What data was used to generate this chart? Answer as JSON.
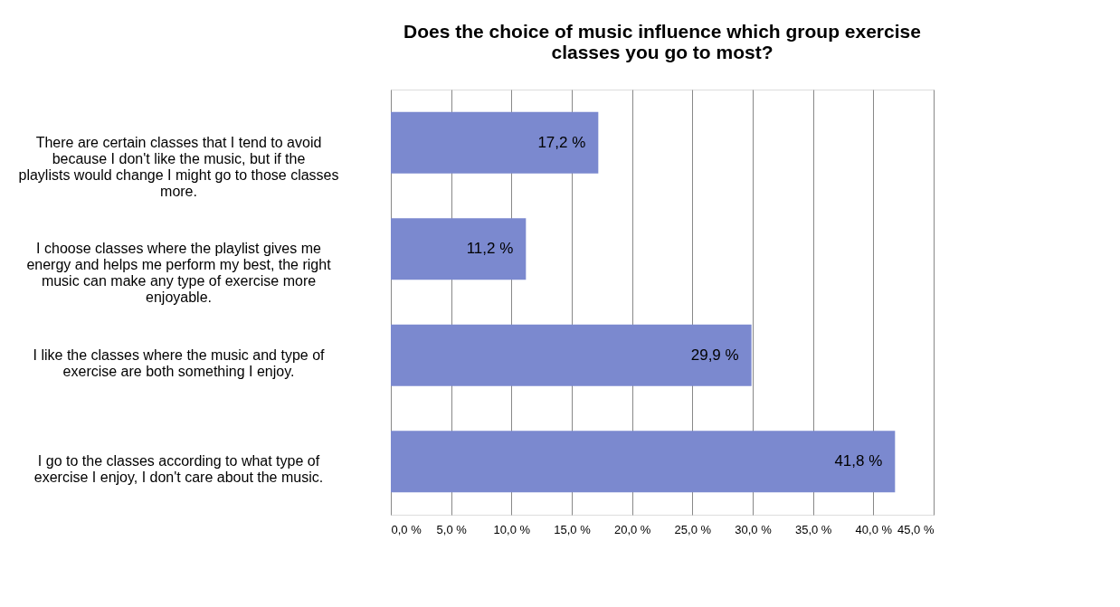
{
  "chart_data": {
    "type": "bar",
    "orientation": "horizontal",
    "title": "Does the choice of music influence which group exercise classes you go to most?",
    "categories": [
      "There are certain classes that I tend to avoid because I don't like the music, but if the playlists would change I might go to those classes more.",
      "I choose classes where the playlist gives me energy and helps me perform my best, the right music can make any type of exercise more enjoyable.",
      "I like the classes where the music and type of exercise are both something I enjoy.",
      "I go to the classes according to what type of exercise I enjoy, I don't care about the music."
    ],
    "values": [
      17.2,
      11.2,
      29.9,
      41.8
    ],
    "value_labels": [
      "17,2 %",
      "11,2 %",
      "29,9 %",
      "41,8 %"
    ],
    "color": "#7b89cf",
    "xlim": [
      0,
      45
    ],
    "xticks": [
      {
        "value": 0,
        "label": "0,0 %"
      },
      {
        "value": 5,
        "label": "5,0 %"
      },
      {
        "value": 10,
        "label": "10,0 %"
      },
      {
        "value": 15,
        "label": "15,0 %"
      },
      {
        "value": 20,
        "label": "20,0 %"
      },
      {
        "value": 25,
        "label": "25,0 %"
      },
      {
        "value": 30,
        "label": "30,0 %"
      },
      {
        "value": 35,
        "label": "35,0 %"
      },
      {
        "value": 40,
        "label": "40,0 %"
      },
      {
        "value": 45,
        "label": "45,0 %"
      }
    ],
    "grid": "x"
  }
}
